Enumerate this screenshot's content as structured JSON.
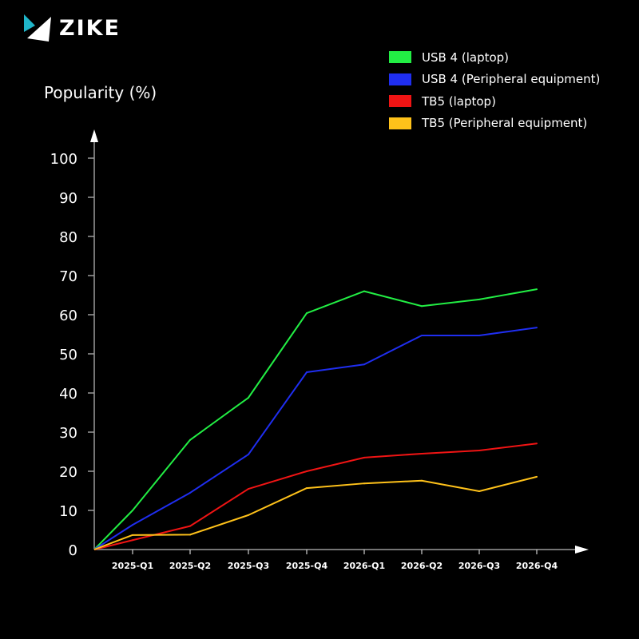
{
  "brand": {
    "name": "ZIKE",
    "accent": "#1fb5c9"
  },
  "chart_data": {
    "type": "line",
    "title": "",
    "xlabel": "",
    "ylabel": "Popularity (%)",
    "ylim": [
      0,
      100
    ],
    "yticks": [
      0,
      10,
      20,
      30,
      40,
      50,
      60,
      70,
      80,
      90,
      100
    ],
    "categories": [
      "2025-Q1",
      "2025-Q2",
      "2025-Q3",
      "2025-Q4",
      "2026-Q1",
      "2026-Q2",
      "2026-Q3",
      "2026-Q4"
    ],
    "origin_value": 0,
    "grid": false,
    "legend_position": "top-right",
    "series": [
      {
        "name": "USB 4 (laptop)",
        "color": "#22ee44",
        "values": [
          10,
          28,
          38.8,
          60.4,
          66,
          62.2,
          63.9,
          66.5
        ]
      },
      {
        "name": "USB 4 (Peripheral equipment)",
        "color": "#1f2ef0",
        "values": [
          6.3,
          14.5,
          24.3,
          45.3,
          47.3,
          54.7,
          54.7,
          56.7
        ]
      },
      {
        "name": "TB5 (laptop)",
        "color": "#f01414",
        "values": [
          2.4,
          6,
          15.5,
          20,
          23.5,
          24.5,
          25.3,
          27.1
        ]
      },
      {
        "name": "TB5 (Peripheral equipment)",
        "color": "#ffc21a",
        "values": [
          3.7,
          3.8,
          8.8,
          15.7,
          16.9,
          17.6,
          14.9,
          18.6
        ]
      }
    ]
  }
}
